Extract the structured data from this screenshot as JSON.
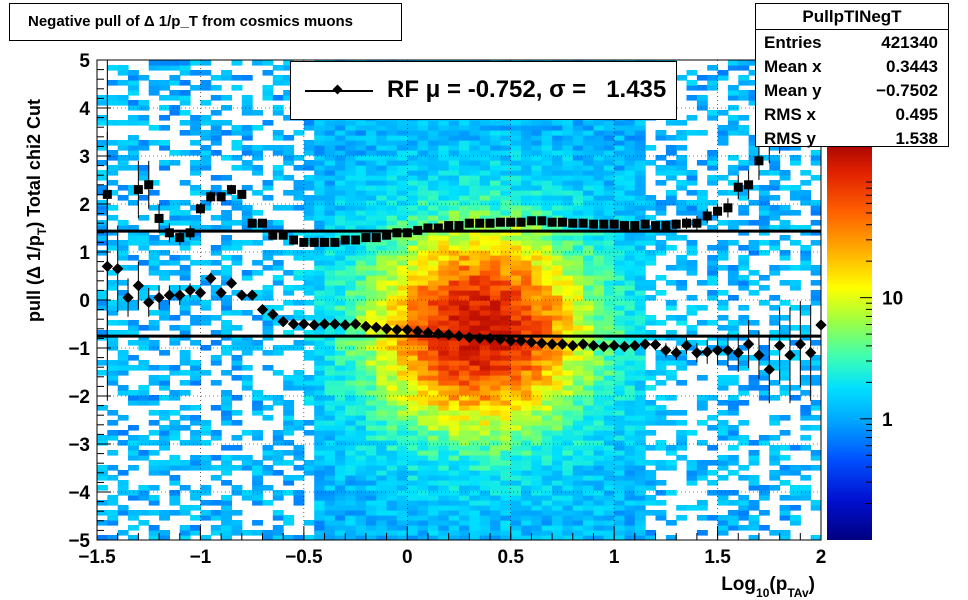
{
  "title": "Negative pull of Δ 1/p_T from cosmics muons",
  "stats": {
    "name": "PullpTINegT",
    "rows": [
      {
        "key": "Entries",
        "value": "421340"
      },
      {
        "key": "Mean x",
        "value": "0.3443"
      },
      {
        "key": "Mean y",
        "value": "−0.7502"
      },
      {
        "key": "RMS x",
        "value": "0.495"
      },
      {
        "key": "RMS y",
        "value": "1.538"
      }
    ]
  },
  "legend": {
    "label": "RF μ = -0.752, σ =   1.435"
  },
  "chart_data": {
    "type": "heatmap",
    "title": "Negative pull of Δ 1/p_T from cosmics muons",
    "xlabel": "Log10(pTAv)",
    "ylabel": "pull (Δ 1/pT)  Total chi2 Cut",
    "xlim": [
      -1.5,
      2
    ],
    "ylim": [
      -5,
      5
    ],
    "x_ticks": [
      "−1.5",
      "−1",
      "−0.5",
      "0",
      "0.5",
      "1",
      "1.5",
      "2"
    ],
    "y_ticks": [
      "−5",
      "−4",
      "−3",
      "−2",
      "−1",
      "0",
      "1",
      "2",
      "3",
      "4",
      "5"
    ],
    "grid": true,
    "colorbar": {
      "scale": "log",
      "ticks": [
        "1",
        "10"
      ],
      "range": [
        0.1,
        200
      ]
    },
    "fit_lines": {
      "mean": -0.752,
      "sigma": 1.435
    },
    "series": [
      {
        "name": "RF",
        "marker": "diamond",
        "x": [
          -1.45,
          -1.4,
          -1.35,
          -1.3,
          -1.25,
          -1.2,
          -1.15,
          -1.1,
          -1.05,
          -1.0,
          -0.95,
          -0.9,
          -0.85,
          -0.8,
          -0.75,
          -0.7,
          -0.65,
          -0.6,
          -0.55,
          -0.5,
          -0.45,
          -0.4,
          -0.35,
          -0.3,
          -0.25,
          -0.2,
          -0.15,
          -0.1,
          -0.05,
          0.0,
          0.05,
          0.1,
          0.15,
          0.2,
          0.25,
          0.3,
          0.35,
          0.4,
          0.45,
          0.5,
          0.55,
          0.6,
          0.65,
          0.7,
          0.75,
          0.8,
          0.85,
          0.9,
          0.95,
          1.0,
          1.05,
          1.1,
          1.15,
          1.2,
          1.25,
          1.3,
          1.35,
          1.4,
          1.45,
          1.5,
          1.55,
          1.6,
          1.65,
          1.7,
          1.75,
          1.8,
          1.85,
          1.9,
          1.95,
          2.0
        ],
        "y": [
          0.7,
          0.65,
          0.05,
          0.3,
          -0.05,
          0.05,
          0.1,
          0.1,
          0.2,
          0.15,
          0.45,
          0.15,
          0.35,
          0.1,
          0.1,
          -0.2,
          -0.3,
          -0.45,
          -0.5,
          -0.5,
          -0.52,
          -0.5,
          -0.5,
          -0.52,
          -0.5,
          -0.55,
          -0.57,
          -0.6,
          -0.62,
          -0.62,
          -0.65,
          -0.68,
          -0.7,
          -0.72,
          -0.75,
          -0.78,
          -0.8,
          -0.8,
          -0.82,
          -0.85,
          -0.85,
          -0.88,
          -0.9,
          -0.92,
          -0.92,
          -0.95,
          -0.92,
          -0.95,
          -0.97,
          -0.95,
          -0.97,
          -0.95,
          -0.92,
          -0.93,
          -1.05,
          -1.1,
          -0.95,
          -1.1,
          -1.08,
          -1.05,
          -1.05,
          -1.1,
          -0.92,
          -1.15,
          -1.45,
          -0.95,
          -1.15,
          -0.92,
          -1.1,
          -0.52
        ],
        "err": [
          2.8,
          0.9,
          0.4,
          0.5,
          0.3,
          0.25,
          0.2,
          0.2,
          0.15,
          0.12,
          0.12,
          0.1,
          0.1,
          0.08,
          0.06,
          0.05,
          0.04,
          0.03,
          0.02,
          0.02,
          0.02,
          0.02,
          0.02,
          0.02,
          0.02,
          0.02,
          0.02,
          0.02,
          0.02,
          0.02,
          0.02,
          0.02,
          0.02,
          0.02,
          0.02,
          0.02,
          0.02,
          0.02,
          0.02,
          0.02,
          0.02,
          0.02,
          0.03,
          0.03,
          0.03,
          0.04,
          0.04,
          0.05,
          0.05,
          0.06,
          0.07,
          0.08,
          0.1,
          0.12,
          0.15,
          0.15,
          0.18,
          0.2,
          0.25,
          0.3,
          0.35,
          0.4,
          0.5,
          0.5,
          0.7,
          0.8,
          1.0,
          0.9,
          1.0,
          1.2
        ]
      },
      {
        "name": "sigma",
        "marker": "square",
        "x": [
          -1.45,
          -1.3,
          -1.25,
          -1.2,
          -1.15,
          -1.1,
          -1.05,
          -1.0,
          -0.95,
          -0.9,
          -0.85,
          -0.8,
          -0.75,
          -0.7,
          -0.65,
          -0.6,
          -0.55,
          -0.5,
          -0.45,
          -0.4,
          -0.35,
          -0.3,
          -0.25,
          -0.2,
          -0.15,
          -0.1,
          -0.05,
          0.0,
          0.05,
          0.1,
          0.15,
          0.2,
          0.25,
          0.3,
          0.35,
          0.4,
          0.45,
          0.5,
          0.55,
          0.6,
          0.65,
          0.7,
          0.75,
          0.8,
          0.85,
          0.9,
          0.95,
          1.0,
          1.05,
          1.1,
          1.15,
          1.2,
          1.25,
          1.3,
          1.35,
          1.4,
          1.45,
          1.5,
          1.55,
          1.6,
          1.65,
          1.7,
          1.75,
          1.8,
          1.85
        ],
        "y": [
          2.2,
          2.3,
          2.4,
          1.7,
          1.4,
          1.3,
          1.4,
          1.9,
          2.15,
          2.15,
          2.3,
          2.2,
          1.6,
          1.6,
          1.35,
          1.35,
          1.25,
          1.2,
          1.2,
          1.2,
          1.2,
          1.25,
          1.25,
          1.3,
          1.3,
          1.35,
          1.4,
          1.4,
          1.45,
          1.5,
          1.5,
          1.55,
          1.55,
          1.6,
          1.6,
          1.6,
          1.62,
          1.62,
          1.62,
          1.65,
          1.65,
          1.62,
          1.62,
          1.6,
          1.6,
          1.58,
          1.58,
          1.58,
          1.55,
          1.55,
          1.58,
          1.55,
          1.55,
          1.58,
          1.6,
          1.6,
          1.75,
          1.85,
          1.92,
          2.35,
          2.4,
          2.9,
          3.35,
          3.65,
          4.15
        ],
        "err": [
          3.0,
          0.6,
          0.5,
          0.3,
          0.2,
          0.15,
          0.15,
          0.12,
          0.12,
          0.1,
          0.1,
          0.08,
          0.06,
          0.05,
          0.04,
          0.03,
          0.02,
          0.02,
          0.02,
          0.02,
          0.02,
          0.02,
          0.02,
          0.02,
          0.02,
          0.02,
          0.02,
          0.02,
          0.02,
          0.02,
          0.02,
          0.02,
          0.02,
          0.02,
          0.02,
          0.02,
          0.02,
          0.02,
          0.02,
          0.02,
          0.02,
          0.02,
          0.03,
          0.03,
          0.03,
          0.03,
          0.04,
          0.04,
          0.05,
          0.06,
          0.07,
          0.08,
          0.1,
          0.1,
          0.12,
          0.15,
          0.15,
          0.15,
          0.2,
          0.25,
          0.3,
          0.4,
          0.5,
          0.6,
          0.8
        ]
      }
    ]
  }
}
